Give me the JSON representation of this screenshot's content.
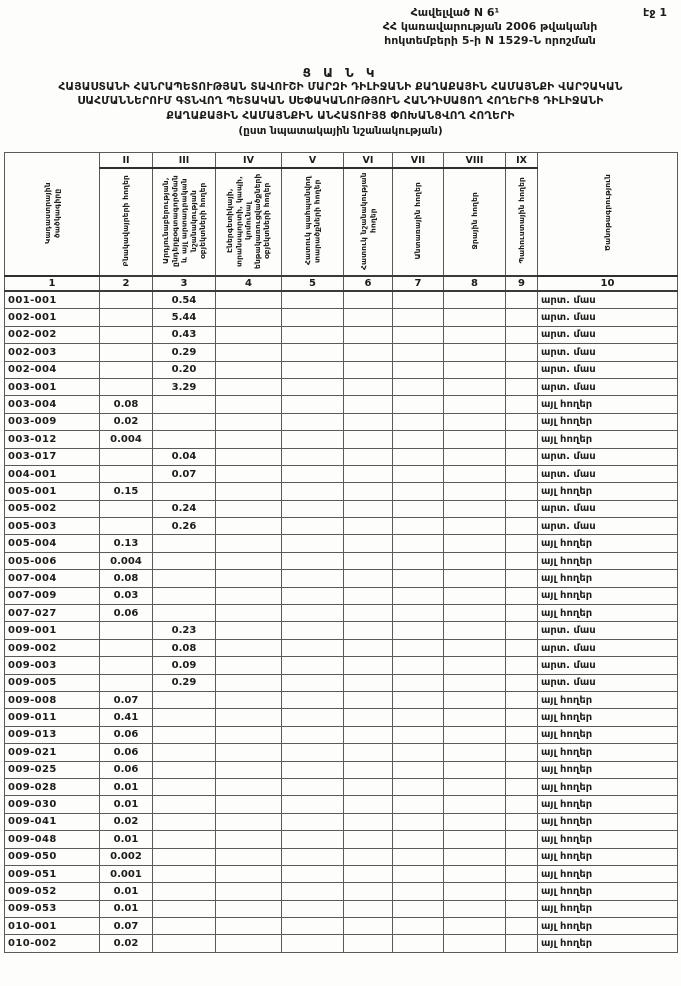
{
  "page": {
    "page_label": "էջ 1"
  },
  "appendix": {
    "line1": "Հավելված N 6¹",
    "line2": "ՀՀ կառավարության 2006 թվականի",
    "line3": "հոկտեմբերի 5-ի N 1529-Ն որոշման"
  },
  "title": {
    "main": "Ց Ա Ն Կ",
    "line1": "ՀԱՅԱՍՏԱՆԻ ՀԱՆՐԱՊԵՏՈՒԹՅԱՆ ՏԱՎՈՒՇԻ ՄԱՐԶԻ ԴԻԼԻՋԱՆԻ ՔԱՂԱՔԱՅԻՆ ՀԱՄԱՅՆՔԻ ՎԱՐՉԱԿԱՆ",
    "line2": "ՍԱՀՄԱՆՆԵՐՈՒՄ ԳՏՆՎՈՂ ՊԵՏԱԿԱՆ ՍԵՓԱԿԱՆՈՒԹՅՈՒՆ ՀԱՆԴԻՍԱՑՈՂ ՀՈՂԵՐԻՑ ԴԻԼԻՋԱՆԻ",
    "line3": "ՔԱՂԱՔԱՅԻՆ ՀԱՄԱՅՆՔԻՆ ԱՆՀԱՏՈՒՅՑ ՓՈԽԱՆՑՎՈՂ ՀՈՂԵՐԻ",
    "subtitle": "(ըստ նպատակային նշանակության)"
  },
  "table": {
    "columns": [
      {
        "roman": "",
        "label": "Կադաստրային ծածկագիրը",
        "num": "1"
      },
      {
        "roman": "II",
        "label": "Բնակավայրերի հողեր",
        "num": "2"
      },
      {
        "roman": "III",
        "label": "Արդյունաբերության, ընդերքօգտագործման և այլ արտադրական նշանակության օբյեկտների հողեր",
        "num": "3"
      },
      {
        "roman": "IV",
        "label": "Էներգետիկայի, տրանսպորտի, կապի, կոմունալ ենթակառուցվածքների օբյեկտների հողեր",
        "num": "4"
      },
      {
        "roman": "V",
        "label": "Հատուկ պահպանվող տարածքների հողեր",
        "num": "5"
      },
      {
        "roman": "VI",
        "label": "Հատուկ նշանակության հողեր",
        "num": "6"
      },
      {
        "roman": "VII",
        "label": "Անտառային հողեր",
        "num": "7"
      },
      {
        "roman": "VIII",
        "label": "Ջրային հողեր",
        "num": "8"
      },
      {
        "roman": "IX",
        "label": "Պահուստային հողեր",
        "num": "9"
      },
      {
        "roman": "",
        "label": "Ծանոթագրություն",
        "num": "10"
      }
    ],
    "rows": [
      [
        "001-001",
        "",
        "0.54",
        "",
        "",
        "",
        "",
        "",
        "",
        "արտ. մաս"
      ],
      [
        "002-001",
        "",
        "5.44",
        "",
        "",
        "",
        "",
        "",
        "",
        "արտ. մաս"
      ],
      [
        "002-002",
        "",
        "0.43",
        "",
        "",
        "",
        "",
        "",
        "",
        "արտ. մաս"
      ],
      [
        "002-003",
        "",
        "0.29",
        "",
        "",
        "",
        "",
        "",
        "",
        "արտ. մաս"
      ],
      [
        "002-004",
        "",
        "0.20",
        "",
        "",
        "",
        "",
        "",
        "",
        "արտ. մաս"
      ],
      [
        "003-001",
        "",
        "3.29",
        "",
        "",
        "",
        "",
        "",
        "",
        "արտ. մաս"
      ],
      [
        "003-004",
        "0.08",
        "",
        "",
        "",
        "",
        "",
        "",
        "",
        "այլ հողեր"
      ],
      [
        "003-009",
        "0.02",
        "",
        "",
        "",
        "",
        "",
        "",
        "",
        "այլ հողեր"
      ],
      [
        "003-012",
        "0.004",
        "",
        "",
        "",
        "",
        "",
        "",
        "",
        "այլ հողեր"
      ],
      [
        "003-017",
        "",
        "0.04",
        "",
        "",
        "",
        "",
        "",
        "",
        "արտ. մաս"
      ],
      [
        "004-001",
        "",
        "0.07",
        "",
        "",
        "",
        "",
        "",
        "",
        "արտ. մաս"
      ],
      [
        "005-001",
        "0.15",
        "",
        "",
        "",
        "",
        "",
        "",
        "",
        "այլ հողեր"
      ],
      [
        "005-002",
        "",
        "0.24",
        "",
        "",
        "",
        "",
        "",
        "",
        "արտ. մաս"
      ],
      [
        "005-003",
        "",
        "0.26",
        "",
        "",
        "",
        "",
        "",
        "",
        "արտ. մաս"
      ],
      [
        "005-004",
        "0.13",
        "",
        "",
        "",
        "",
        "",
        "",
        "",
        "այլ հողեր"
      ],
      [
        "005-006",
        "0.004",
        "",
        "",
        "",
        "",
        "",
        "",
        "",
        "այլ հողեր"
      ],
      [
        "007-004",
        "0.08",
        "",
        "",
        "",
        "",
        "",
        "",
        "",
        "այլ հողեր"
      ],
      [
        "007-009",
        "0.03",
        "",
        "",
        "",
        "",
        "",
        "",
        "",
        "այլ հողեր"
      ],
      [
        "007-027",
        "0.06",
        "",
        "",
        "",
        "",
        "",
        "",
        "",
        "այլ հողեր"
      ],
      [
        "009-001",
        "",
        "0.23",
        "",
        "",
        "",
        "",
        "",
        "",
        "արտ. մաս"
      ],
      [
        "009-002",
        "",
        "0.08",
        "",
        "",
        "",
        "",
        "",
        "",
        "արտ. մաս"
      ],
      [
        "009-003",
        "",
        "0.09",
        "",
        "",
        "",
        "",
        "",
        "",
        "արտ. մաս"
      ],
      [
        "009-005",
        "",
        "0.29",
        "",
        "",
        "",
        "",
        "",
        "",
        "արտ. մաս"
      ],
      [
        "009-008",
        "0.07",
        "",
        "",
        "",
        "",
        "",
        "",
        "",
        "այլ հողեր"
      ],
      [
        "009-011",
        "0.41",
        "",
        "",
        "",
        "",
        "",
        "",
        "",
        "այլ հողեր"
      ],
      [
        "009-013",
        "0.06",
        "",
        "",
        "",
        "",
        "",
        "",
        "",
        "այլ հողեր"
      ],
      [
        "009-021",
        "0.06",
        "",
        "",
        "",
        "",
        "",
        "",
        "",
        "այլ հողեր"
      ],
      [
        "009-025",
        "0.06",
        "",
        "",
        "",
        "",
        "",
        "",
        "",
        "այլ հողեր"
      ],
      [
        "009-028",
        "0.01",
        "",
        "",
        "",
        "",
        "",
        "",
        "",
        "այլ հողեր"
      ],
      [
        "009-030",
        "0.01",
        "",
        "",
        "",
        "",
        "",
        "",
        "",
        "այլ հողեր"
      ],
      [
        "009-041",
        "0.02",
        "",
        "",
        "",
        "",
        "",
        "",
        "",
        "այլ հողեր"
      ],
      [
        "009-048",
        "0.01",
        "",
        "",
        "",
        "",
        "",
        "",
        "",
        "այլ հողեր"
      ],
      [
        "009-050",
        "0.002",
        "",
        "",
        "",
        "",
        "",
        "",
        "",
        "այլ հողեր"
      ],
      [
        "009-051",
        "0.001",
        "",
        "",
        "",
        "",
        "",
        "",
        "",
        "այլ հողեր"
      ],
      [
        "009-052",
        "0.01",
        "",
        "",
        "",
        "",
        "",
        "",
        "",
        "այլ հողեր"
      ],
      [
        "009-053",
        "0.01",
        "",
        "",
        "",
        "",
        "",
        "",
        "",
        "այլ հողեր"
      ],
      [
        "010-001",
        "0.07",
        "",
        "",
        "",
        "",
        "",
        "",
        "",
        "այլ հողեր"
      ],
      [
        "010-002",
        "0.02",
        "",
        "",
        "",
        "",
        "",
        "",
        "",
        "այլ հողեր"
      ]
    ]
  }
}
